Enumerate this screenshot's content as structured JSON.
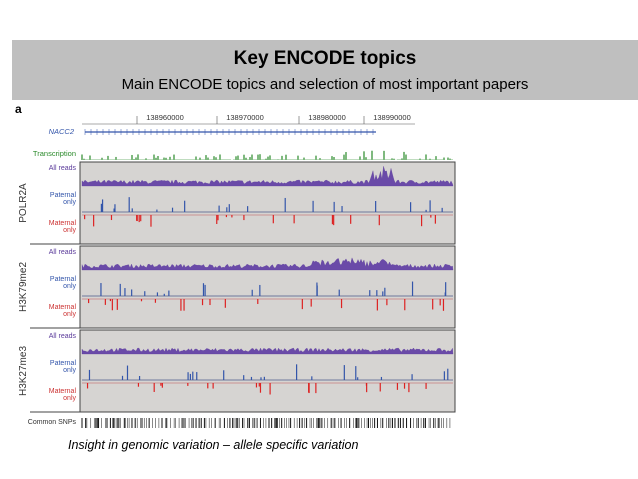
{
  "header": {
    "title": "Key ENCODE topics",
    "subtitle": "Main ENCODE topics and selection of most important papers"
  },
  "figure": {
    "panel_label": "a",
    "gene": "NACC2",
    "transcription_label": "Transcription",
    "coordinates": [
      "138960000",
      "138970000",
      "138980000",
      "138990000"
    ],
    "tracks": [
      {
        "name": "POLR2A",
        "rows": [
          "All reads",
          "Paternal only",
          "Maternal only"
        ]
      },
      {
        "name": "H3K79me2",
        "rows": [
          "All reads",
          "Paternal only",
          "Maternal only"
        ]
      },
      {
        "name": "H3K27me3",
        "rows": [
          "All reads",
          "Paternal only",
          "Maternal only"
        ]
      }
    ],
    "snp_label": "Common SNPs"
  },
  "caption": "Insight in genomic variation – allele specific variation"
}
